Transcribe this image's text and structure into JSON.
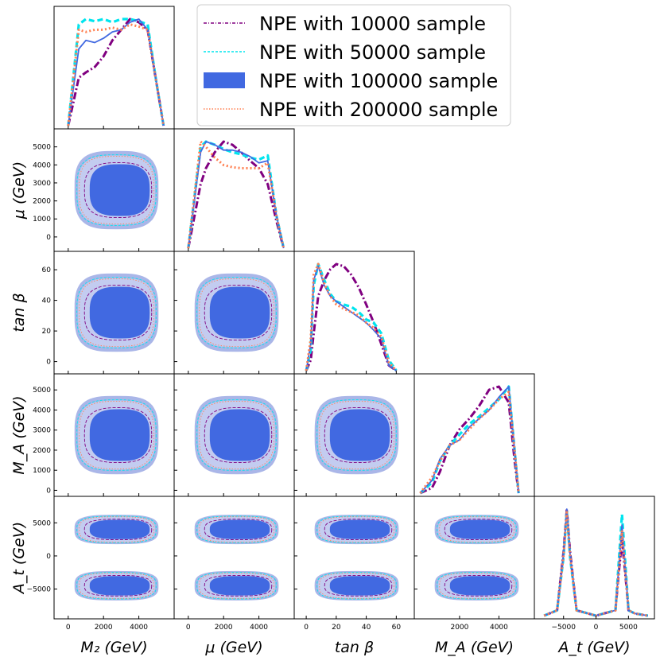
{
  "chart_data": {
    "type": "corner",
    "parameters": [
      {
        "key": "M2",
        "label": "M_2 (GeV)",
        "display": "M₂ (GeV)",
        "ticks": [
          0,
          2000,
          4000
        ],
        "range": [
          -800,
          6000
        ]
      },
      {
        "key": "mu",
        "label": "μ (GeV)",
        "display": "μ (GeV)",
        "ticks": [
          0,
          2000,
          4000
        ],
        "range": [
          -800,
          6000
        ]
      },
      {
        "key": "tanb",
        "label": "tan β",
        "display": "tan β",
        "ticks": [
          0,
          20,
          40,
          60
        ],
        "range": [
          -8,
          72
        ]
      },
      {
        "key": "MA",
        "label": "M_A (GeV)",
        "display": "M_A (GeV)",
        "ticks": [
          0,
          1000,
          2000,
          3000,
          4000,
          5000
        ],
        "range": [
          -300,
          5800
        ]
      },
      {
        "key": "At",
        "label": "A_t (GeV)",
        "display": "A_t (GeV)",
        "ticks": [
          -5000,
          0,
          5000
        ],
        "range": [
          -9500,
          9000
        ]
      }
    ],
    "y_tick_labels": {
      "mu": [
        "0",
        "1000",
        "2000",
        "3000",
        "4000",
        "5000"
      ],
      "tanb": [
        "0",
        "20",
        "40",
        "60"
      ],
      "MA": [
        "0",
        "1000",
        "2000",
        "3000",
        "4000",
        "5000"
      ],
      "At": [
        "−5000",
        "0",
        "5000"
      ]
    },
    "x_tick_labels": {
      "M2": [
        "0",
        "2000",
        "4000"
      ],
      "mu": [
        "0",
        "2000",
        "4000"
      ],
      "tanb": [
        "0",
        "20",
        "40",
        "60"
      ],
      "MA": [
        "2000",
        "4000"
      ],
      "At": [
        "−5000",
        "0",
        "5000"
      ]
    },
    "series": [
      {
        "name": "NPE with 10000 sample",
        "color": "#800080",
        "style": "dashdot"
      },
      {
        "name": "NPE with 50000 sample",
        "color": "#00e5ee",
        "style": "dashed"
      },
      {
        "name": "NPE with 100000 sample",
        "color": "#4169e1",
        "style": "solid"
      },
      {
        "name": "NPE with 200000 sample",
        "color": "#ff7f50",
        "style": "dotted"
      }
    ],
    "marginals": {
      "M2": {
        "x": [
          0,
          600,
          1000,
          1500,
          2000,
          2500,
          3000,
          3500,
          4000,
          4500,
          5000,
          5400
        ],
        "s10000": [
          0,
          0.45,
          0.5,
          0.55,
          0.65,
          0.8,
          0.9,
          1.0,
          0.97,
          0.9,
          0.4,
          0
        ],
        "s50000": [
          0,
          0.95,
          1.0,
          0.98,
          1.0,
          0.97,
          1.0,
          1.0,
          0.98,
          0.95,
          0.4,
          0
        ],
        "s100000": [
          0,
          0.72,
          0.8,
          0.78,
          0.82,
          0.88,
          0.9,
          0.97,
          1.0,
          0.9,
          0.4,
          0
        ],
        "s200000": [
          0,
          0.9,
          0.88,
          0.9,
          0.9,
          0.92,
          0.9,
          0.95,
          0.93,
          0.9,
          0.4,
          0
        ]
      },
      "mu": {
        "x": [
          0,
          700,
          1000,
          1500,
          2000,
          2500,
          3000,
          3500,
          4000,
          4500,
          5000,
          5400
        ],
        "s10000": [
          0,
          0.6,
          0.75,
          0.9,
          1.0,
          0.97,
          0.9,
          0.82,
          0.75,
          0.6,
          0.25,
          0
        ],
        "s50000": [
          0,
          0.95,
          1.0,
          0.97,
          0.93,
          0.9,
          0.88,
          0.85,
          0.83,
          0.87,
          0.3,
          0
        ],
        "s100000": [
          0,
          0.9,
          1.0,
          0.97,
          0.92,
          0.92,
          0.9,
          0.86,
          0.8,
          0.82,
          0.3,
          0
        ],
        "s200000": [
          0,
          1.0,
          0.95,
          0.85,
          0.78,
          0.76,
          0.75,
          0.75,
          0.75,
          0.8,
          0.3,
          0
        ]
      },
      "tanb": {
        "x": [
          0,
          3,
          5,
          8,
          12,
          16,
          20,
          25,
          30,
          35,
          40,
          45,
          50,
          55,
          60
        ],
        "s10000": [
          0,
          0.1,
          0.35,
          0.7,
          0.85,
          0.95,
          1.0,
          0.98,
          0.9,
          0.78,
          0.62,
          0.45,
          0.25,
          0.05,
          0
        ],
        "s50000": [
          0,
          0.2,
          0.8,
          1.0,
          0.85,
          0.72,
          0.65,
          0.62,
          0.6,
          0.55,
          0.48,
          0.45,
          0.35,
          0.1,
          0
        ],
        "s100000": [
          0,
          0.25,
          0.85,
          0.98,
          0.8,
          0.7,
          0.65,
          0.6,
          0.55,
          0.5,
          0.45,
          0.38,
          0.3,
          0.05,
          0
        ],
        "s200000": [
          0,
          0.3,
          0.9,
          1.0,
          0.82,
          0.7,
          0.62,
          0.58,
          0.55,
          0.52,
          0.45,
          0.4,
          0.32,
          0.08,
          0
        ]
      },
      "MA": {
        "x": [
          0,
          600,
          1000,
          1500,
          2000,
          2500,
          3000,
          3500,
          4000,
          4500,
          4800,
          5000
        ],
        "s10000": [
          0,
          0.05,
          0.2,
          0.45,
          0.6,
          0.7,
          0.82,
          0.97,
          1.0,
          0.85,
          0.3,
          0
        ],
        "s50000": [
          0,
          0.1,
          0.3,
          0.45,
          0.55,
          0.65,
          0.72,
          0.8,
          0.88,
          1.0,
          0.4,
          0
        ],
        "s100000": [
          0,
          0.12,
          0.32,
          0.45,
          0.5,
          0.62,
          0.7,
          0.78,
          0.9,
          1.0,
          0.4,
          0
        ],
        "s200000": [
          0,
          0.15,
          0.3,
          0.45,
          0.5,
          0.6,
          0.7,
          0.78,
          0.88,
          0.95,
          0.4,
          0
        ]
      },
      "At": {
        "x": [
          -8000,
          -6000,
          -5000,
          -4500,
          -4000,
          -3000,
          0,
          3000,
          3500,
          4000,
          4500,
          5000,
          6000,
          8000
        ],
        "s10000": [
          0,
          0.05,
          0.6,
          1.0,
          0.6,
          0.05,
          0,
          0.05,
          0.4,
          0.7,
          0.4,
          0.05,
          0.02,
          0
        ],
        "s50000": [
          0,
          0.05,
          0.55,
          0.98,
          0.55,
          0.05,
          0,
          0.05,
          0.5,
          0.95,
          0.5,
          0.05,
          0.02,
          0
        ],
        "s100000": [
          0,
          0.05,
          0.58,
          1.0,
          0.58,
          0.05,
          0,
          0.05,
          0.45,
          0.85,
          0.45,
          0.05,
          0.02,
          0
        ],
        "s200000": [
          0,
          0.05,
          0.56,
          0.97,
          0.56,
          0.05,
          0,
          0.05,
          0.42,
          0.8,
          0.42,
          0.05,
          0.02,
          0
        ]
      }
    }
  }
}
